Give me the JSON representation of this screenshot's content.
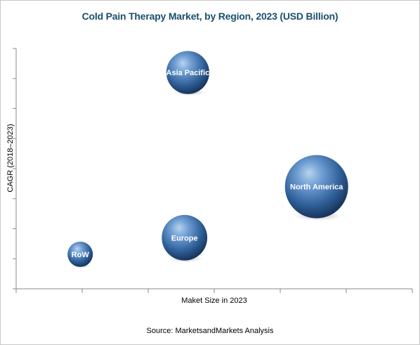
{
  "chart_data": {
    "type": "scatter",
    "title": "Cold Pain Therapy Market, by Region, 2023 (USD Billion)",
    "xlabel": "Maket Size in 2023",
    "ylabel": "CAGR (2018–2023)",
    "grid": false,
    "legend": "none",
    "bubble_color": "#3d6fa8",
    "series": [
      {
        "points": [
          {
            "label": "Asia Pacific",
            "x": 2.6,
            "y": 7.2,
            "size": 0.68
          },
          {
            "label": "North America",
            "x": 4.55,
            "y": 3.4,
            "size": 1.0
          },
          {
            "label": "Europe",
            "x": 2.55,
            "y": 1.7,
            "size": 0.72
          },
          {
            "label": "RoW",
            "x": 0.97,
            "y": 1.15,
            "size": 0.4
          }
        ]
      }
    ],
    "xlim": [
      0,
      6
    ],
    "ylim": [
      0,
      8
    ]
  },
  "source": "Source: MarketsandMarkets Analysis"
}
